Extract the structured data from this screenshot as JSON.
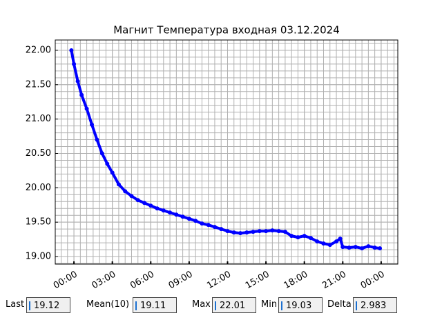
{
  "chart_data": {
    "type": "line",
    "title": "Магнит Температура входная 03.12.2024",
    "x": [
      -0.2,
      0.0,
      0.3,
      0.6,
      1.0,
      1.4,
      1.8,
      2.2,
      2.6,
      3.0,
      3.5,
      4.0,
      4.5,
      5.0,
      5.5,
      6.0,
      6.5,
      7.0,
      7.5,
      8.0,
      8.5,
      9.0,
      9.5,
      10.0,
      10.5,
      11.0,
      11.5,
      12.0,
      12.5,
      13.0,
      13.5,
      14.0,
      14.5,
      15.0,
      15.5,
      16.0,
      16.5,
      17.0,
      17.5,
      18.0,
      18.5,
      19.0,
      19.5,
      20.0,
      20.5,
      20.8,
      21.0,
      21.5,
      22.0,
      22.5,
      23.0,
      23.5,
      23.9
    ],
    "series": [
      {
        "color": "#0000ff",
        "values": [
          22.0,
          21.8,
          21.55,
          21.35,
          21.15,
          20.92,
          20.7,
          20.5,
          20.35,
          20.22,
          20.05,
          19.95,
          19.88,
          19.82,
          19.78,
          19.74,
          19.7,
          19.67,
          19.64,
          19.61,
          19.58,
          19.55,
          19.52,
          19.48,
          19.46,
          19.43,
          19.4,
          19.37,
          19.35,
          19.34,
          19.35,
          19.36,
          19.37,
          19.37,
          19.38,
          19.37,
          19.36,
          19.3,
          19.28,
          19.3,
          19.27,
          19.22,
          19.19,
          19.17,
          19.22,
          19.26,
          19.14,
          19.13,
          19.14,
          19.12,
          19.15,
          19.13,
          19.12
        ]
      }
    ],
    "xlim": [
      -1.46,
      25.3
    ],
    "ylim": [
      18.89,
      22.15
    ],
    "xticks": [
      {
        "value": 0,
        "label": "00:00"
      },
      {
        "value": 3,
        "label": "03:00"
      },
      {
        "value": 6,
        "label": "06:00"
      },
      {
        "value": 9,
        "label": "09:00"
      },
      {
        "value": 12,
        "label": "12:00"
      },
      {
        "value": 15,
        "label": "15:00"
      },
      {
        "value": 18,
        "label": "18:00"
      },
      {
        "value": 21,
        "label": "21:00"
      },
      {
        "value": 24,
        "label": "00:00"
      }
    ],
    "yticks": [
      {
        "value": 19,
        "label": "19.00"
      },
      {
        "value": 19.5,
        "label": "19.50"
      },
      {
        "value": 20,
        "label": "20.00"
      },
      {
        "value": 20.5,
        "label": "20.50"
      },
      {
        "value": 21,
        "label": "21.00"
      },
      {
        "value": 21.5,
        "label": "21.50"
      },
      {
        "value": 22,
        "label": "22.00"
      }
    ],
    "grid": true
  },
  "stats": [
    {
      "label": "Last",
      "value": 19.12
    },
    {
      "label": "Mean(10)",
      "value": 19.11
    },
    {
      "label": "Max",
      "value": 22.01
    },
    {
      "label": "Min",
      "value": 19.03
    },
    {
      "label": "Delta",
      "value": 2.983
    }
  ]
}
